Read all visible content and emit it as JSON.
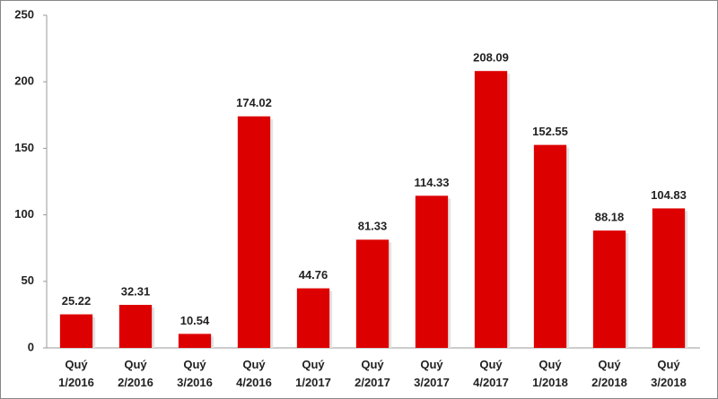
{
  "chart_data": {
    "type": "bar",
    "categories": [
      "Quý 1/2016",
      "Quý 2/2016",
      "Quý 3/2016",
      "Quý 4/2016",
      "Quý 1/2017",
      "Quý 2/2017",
      "Quý 3/2017",
      "Quý 4/2017",
      "Quý 1/2018",
      "Quý 2/2018",
      "Quý 3/2018"
    ],
    "values": [
      25.22,
      32.31,
      10.54,
      174.02,
      44.76,
      81.33,
      114.33,
      208.09,
      152.55,
      88.18,
      104.83
    ],
    "color": "#dd0000",
    "ylim": [
      0,
      250
    ],
    "yticks": [
      0,
      50,
      100,
      150,
      200,
      250
    ],
    "grid": false
  }
}
